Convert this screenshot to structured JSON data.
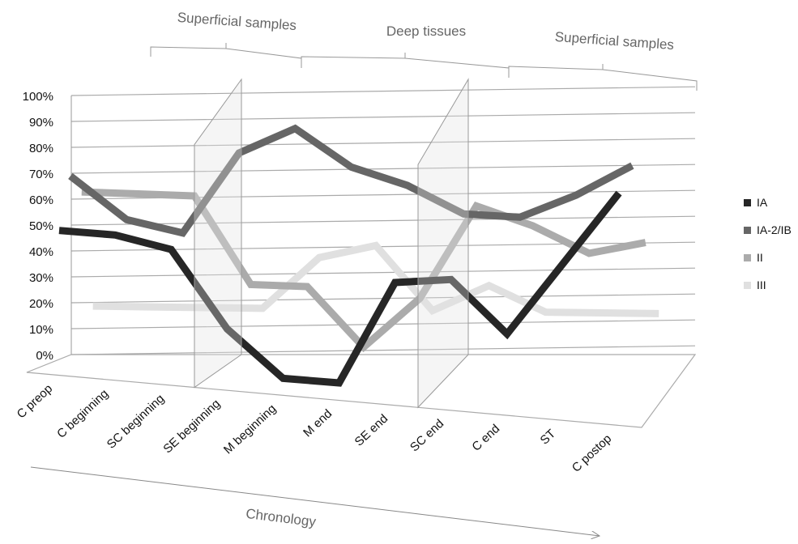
{
  "chart_data": {
    "type": "line",
    "title": "",
    "xlabel": "Chronology",
    "ylabel": "",
    "ylim": [
      0,
      100
    ],
    "yticks": [
      "0%",
      "10%",
      "20%",
      "30%",
      "40%",
      "50%",
      "60%",
      "70%",
      "80%",
      "90%",
      "100%"
    ],
    "categories": [
      "C preop",
      "C beginning",
      "SC beginning",
      "SE beginning",
      "M beginning",
      "M end",
      "SE end",
      "SC end",
      "C end",
      "ST",
      "C postop"
    ],
    "regions": [
      {
        "label": "Superficial samples"
      },
      {
        "label": "Deep tissues"
      },
      {
        "label": "Superficial samples"
      }
    ],
    "legend_position": "right",
    "series": [
      {
        "name": "III",
        "color": "#e0e0e0",
        "values": [
          20,
          20,
          20,
          20,
          40,
          45,
          20,
          30,
          20,
          20,
          20
        ]
      },
      {
        "name": "II",
        "color": "#ababab",
        "values": [
          67,
          67,
          67,
          33,
          33,
          10,
          30,
          67,
          60,
          50,
          55
        ]
      },
      {
        "name": "IA-2/IB",
        "color": "#666666",
        "values": [
          76,
          60,
          56,
          89,
          100,
          86,
          80,
          70,
          70,
          80,
          93
        ]
      },
      {
        "name": "IA",
        "color": "#262626",
        "values": [
          57,
          57,
          53,
          23,
          5,
          5,
          47,
          50,
          30,
          60,
          90
        ]
      }
    ]
  }
}
